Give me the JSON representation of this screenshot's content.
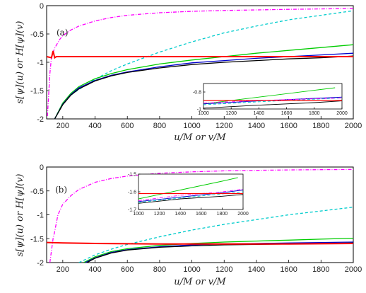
{
  "chart_data": [
    {
      "type": "line",
      "panel_label": "(a)",
      "xlabel": "u/M  or  v/M",
      "ylabel": "s[ψ](u)  or  H[ψ](v)",
      "xlim": [
        100,
        2000
      ],
      "ylim": [
        -2,
        0
      ],
      "xticks": [
        200,
        400,
        600,
        800,
        1000,
        1200,
        1400,
        1600,
        1800,
        2000
      ],
      "yticks": [
        -2,
        -1.5,
        -1,
        -0.5,
        0
      ],
      "grid": false,
      "series": [
        {
          "color": "#ff00ff",
          "style": "dashdot",
          "x": [
            105,
            110,
            120,
            130,
            150,
            180,
            200,
            250,
            300,
            400,
            500,
            600,
            800,
            1000,
            1200,
            1400,
            1600,
            1800,
            2000
          ],
          "y": [
            -1.95,
            -1.7,
            -1.2,
            -0.9,
            -0.75,
            -0.6,
            -0.53,
            -0.43,
            -0.36,
            -0.27,
            -0.21,
            -0.17,
            -0.125,
            -0.1,
            -0.085,
            -0.075,
            -0.065,
            -0.058,
            -0.05
          ]
        },
        {
          "color": "#00cccc",
          "style": "dashed",
          "x": [
            150,
            200,
            250,
            300,
            400,
            500,
            600,
            800,
            1000,
            1200,
            1400,
            1600,
            1800,
            2000
          ],
          "y": [
            -2.0,
            -1.72,
            -1.58,
            -1.48,
            -1.3,
            -1.15,
            -1.03,
            -0.82,
            -0.64,
            -0.48,
            -0.36,
            -0.25,
            -0.17,
            -0.09
          ]
        },
        {
          "color": "#00cc00",
          "style": "solid",
          "x": [
            150,
            200,
            250,
            300,
            400,
            500,
            600,
            800,
            1000,
            1200,
            1400,
            1600,
            1800,
            2000
          ],
          "y": [
            -2.0,
            -1.72,
            -1.55,
            -1.43,
            -1.29,
            -1.2,
            -1.13,
            -1.03,
            -0.96,
            -0.9,
            -0.84,
            -0.79,
            -0.74,
            -0.69
          ]
        },
        {
          "color": "#0000cc",
          "style": "solid",
          "x": [
            150,
            200,
            250,
            300,
            400,
            500,
            600,
            800,
            1000,
            1200,
            1400,
            1600,
            1800,
            2000
          ],
          "y": [
            -2.0,
            -1.74,
            -1.57,
            -1.45,
            -1.32,
            -1.23,
            -1.17,
            -1.08,
            -1.01,
            -0.97,
            -0.93,
            -0.9,
            -0.87,
            -0.84
          ]
        },
        {
          "color": "#000000",
          "style": "solid",
          "x": [
            150,
            200,
            250,
            300,
            400,
            500,
            600,
            800,
            1000,
            1200,
            1400,
            1600,
            1800,
            2000
          ],
          "y": [
            -2.0,
            -1.75,
            -1.58,
            -1.47,
            -1.33,
            -1.24,
            -1.18,
            -1.1,
            -1.04,
            -1.0,
            -0.97,
            -0.94,
            -0.92,
            -0.89
          ]
        },
        {
          "color": "#ff0000",
          "style": "solid",
          "x": [
            100,
            130,
            140,
            150,
            160,
            200,
            400,
            800,
            1200,
            1600,
            2000
          ],
          "y": [
            -0.9,
            -0.92,
            -0.8,
            -0.92,
            -0.9,
            -0.9,
            -0.9,
            -0.9,
            -0.9,
            -0.9,
            -0.9
          ]
        }
      ],
      "inset": {
        "xlim": [
          1000,
          2000
        ],
        "ylim": [
          -1,
          -0.7
        ],
        "xticks": [
          1000,
          1200,
          1400,
          1600,
          1800,
          2000
        ],
        "yticks": [
          -1,
          -0.8
        ],
        "series": [
          {
            "color": "#00cc00",
            "style": "solid",
            "x": [
              1000,
              1400,
              1800,
              1950
            ],
            "y": [
              -0.94,
              -0.86,
              -0.78,
              -0.75
            ]
          },
          {
            "color": "#0000cc",
            "style": "solid",
            "x": [
              1000,
              1400,
              1800,
              2000
            ],
            "y": [
              -0.94,
              -0.905,
              -0.875,
              -0.86
            ]
          },
          {
            "color": "#00cccc",
            "style": "dashed",
            "x": [
              1000,
              1400,
              1800,
              2000
            ],
            "y": [
              -0.95,
              -0.915,
              -0.885,
              -0.87
            ]
          },
          {
            "color": "#ff00ff",
            "style": "dashdot",
            "x": [
              1000,
              1400,
              1800,
              2000
            ],
            "y": [
              -0.93,
              -0.9,
              -0.88,
              -0.87
            ]
          },
          {
            "color": "#000000",
            "style": "solid",
            "x": [
              1000,
              1400,
              1800,
              2000
            ],
            "y": [
              -0.99,
              -0.955,
              -0.925,
              -0.905
            ]
          },
          {
            "color": "#ff0000",
            "style": "solid",
            "x": [
              1000,
              2000
            ],
            "y": [
              -0.9,
              -0.9
            ]
          }
        ]
      }
    },
    {
      "type": "line",
      "panel_label": "(b)",
      "xlabel": "u/M  or  v/M",
      "ylabel": "s[ψ](u)  or  H[ψ](v)",
      "xlim": [
        100,
        2000
      ],
      "ylim": [
        -2,
        0
      ],
      "xticks": [
        200,
        400,
        600,
        800,
        1000,
        1200,
        1400,
        1600,
        1800,
        2000
      ],
      "yticks": [
        -2,
        -1.5,
        -1,
        -0.5,
        0
      ],
      "grid": false,
      "series": [
        {
          "color": "#ff00ff",
          "style": "dashdot",
          "x": [
            120,
            140,
            150,
            170,
            200,
            250,
            300,
            400,
            500,
            600,
            800,
            1000,
            1200,
            1400,
            1600,
            1800,
            2000
          ],
          "y": [
            -2.0,
            -1.5,
            -1.35,
            -1.0,
            -0.78,
            -0.6,
            -0.47,
            -0.32,
            -0.24,
            -0.19,
            -0.13,
            -0.1,
            -0.08,
            -0.07,
            -0.06,
            -0.055,
            -0.05
          ]
        },
        {
          "color": "#00cccc",
          "style": "dashed",
          "x": [
            300,
            400,
            500,
            600,
            800,
            1000,
            1200,
            1400,
            1600,
            1800,
            2000
          ],
          "y": [
            -2.0,
            -1.84,
            -1.72,
            -1.62,
            -1.46,
            -1.32,
            -1.2,
            -1.1,
            -1.0,
            -0.92,
            -0.84
          ]
        },
        {
          "color": "#00cc00",
          "style": "solid",
          "x": [
            330,
            400,
            500,
            600,
            800,
            1000,
            1200,
            1400,
            1600,
            1800,
            2000
          ],
          "y": [
            -2.0,
            -1.88,
            -1.77,
            -1.71,
            -1.64,
            -1.6,
            -1.57,
            -1.55,
            -1.53,
            -1.51,
            -1.49
          ]
        },
        {
          "color": "#0000cc",
          "style": "solid",
          "x": [
            340,
            400,
            500,
            600,
            800,
            1000,
            1200,
            1400,
            1600,
            1800,
            2000
          ],
          "y": [
            -2.0,
            -1.9,
            -1.79,
            -1.73,
            -1.67,
            -1.63,
            -1.61,
            -1.6,
            -1.59,
            -1.58,
            -1.57
          ]
        },
        {
          "color": "#000000",
          "style": "solid",
          "x": [
            350,
            400,
            500,
            600,
            800,
            1000,
            1200,
            1400,
            1600,
            1800,
            2000
          ],
          "y": [
            -2.0,
            -1.91,
            -1.8,
            -1.74,
            -1.68,
            -1.65,
            -1.63,
            -1.62,
            -1.61,
            -1.6,
            -1.59
          ]
        },
        {
          "color": "#ff0000",
          "style": "solid",
          "x": [
            100,
            200,
            400,
            800,
            1200,
            1600,
            2000
          ],
          "y": [
            -1.58,
            -1.59,
            -1.6,
            -1.61,
            -1.61,
            -1.61,
            -1.6
          ]
        }
      ],
      "inset": {
        "xlim": [
          1000,
          2000
        ],
        "ylim": [
          -1.7,
          -1.5
        ],
        "xticks": [
          1000,
          1200,
          1400,
          1600,
          1800,
          2000
        ],
        "yticks": [
          -1.7,
          -1.6,
          -1.5
        ],
        "series": [
          {
            "color": "#00cc00",
            "style": "solid",
            "x": [
              1000,
              1400,
              1800,
              1950
            ],
            "y": [
              -1.64,
              -1.59,
              -1.54,
              -1.52
            ]
          },
          {
            "color": "#0000cc",
            "style": "solid",
            "x": [
              1000,
              1400,
              1800,
              2000
            ],
            "y": [
              -1.655,
              -1.63,
              -1.605,
              -1.59
            ]
          },
          {
            "color": "#00cccc",
            "style": "dashed",
            "x": [
              1000,
              1400,
              1800,
              2000
            ],
            "y": [
              -1.66,
              -1.635,
              -1.612,
              -1.6
            ]
          },
          {
            "color": "#ff00ff",
            "style": "dashdot",
            "x": [
              1000,
              1400,
              1800,
              2000
            ],
            "y": [
              -1.65,
              -1.62,
              -1.6,
              -1.585
            ]
          },
          {
            "color": "#000000",
            "style": "solid",
            "x": [
              1000,
              1400,
              1800,
              2000
            ],
            "y": [
              -1.665,
              -1.64,
              -1.625,
              -1.615
            ]
          },
          {
            "color": "#ff0000",
            "style": "solid",
            "x": [
              1000,
              2000
            ],
            "y": [
              -1.61,
              -1.61
            ]
          }
        ]
      }
    }
  ]
}
